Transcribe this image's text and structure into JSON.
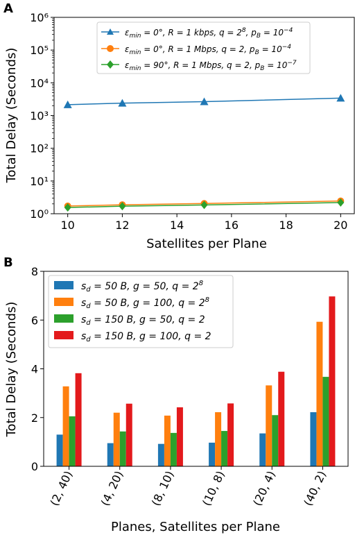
{
  "chart_data": [
    {
      "panel": "A",
      "type": "line",
      "xlabel": "Satellites per Plane",
      "ylabel": "Total Delay (Seconds)",
      "yscale": "log",
      "xlim": [
        9.5,
        20.5
      ],
      "ylim": [
        1,
        1000000
      ],
      "xticks": [
        "10",
        "12",
        "14",
        "16",
        "18",
        "20"
      ],
      "yticks": [
        "10⁰",
        "10¹",
        "10²",
        "10³",
        "10⁴",
        "10⁵",
        "10⁶"
      ],
      "x": [
        10,
        12,
        15,
        20
      ],
      "legend_position": "upper center",
      "series": [
        {
          "name": "εmin = 0°, R = 1 kbps, q = 2⁸, pB = 10⁻⁴",
          "color": "#1f77b4",
          "marker": "triangle",
          "values": [
            2150,
            2400,
            2650,
            3400
          ]
        },
        {
          "name": "εmin = 0°, R = 1 Mbps, q = 2, pB = 10⁻⁴",
          "color": "#ff7f0e",
          "marker": "circle",
          "values": [
            1.72,
            1.88,
            2.05,
            2.45
          ]
        },
        {
          "name": "εmin = 90°, R = 1 Mbps, q = 2, pB = 10⁻⁷",
          "color": "#2ca02c",
          "marker": "diamond",
          "values": [
            1.55,
            1.7,
            1.85,
            2.2
          ]
        }
      ]
    },
    {
      "panel": "B",
      "type": "bar",
      "xlabel": "Planes, Satellites per Plane",
      "ylabel": "Total Delay (Seconds)",
      "ylim": [
        0,
        8
      ],
      "yticks": [
        "0",
        "2",
        "4",
        "6",
        "8"
      ],
      "categories": [
        "(2, 40)",
        "(4, 20)",
        "(8, 10)",
        "(10, 8)",
        "(20, 4)",
        "(40, 2)"
      ],
      "legend_position": "upper left",
      "series": [
        {
          "name": "sd = 50 B, g = 50, q = 2⁸",
          "color": "#1f77b4",
          "values": [
            1.3,
            0.95,
            0.92,
            0.97,
            1.35,
            2.22
          ]
        },
        {
          "name": "sd = 50 B, g = 100, q = 2⁸",
          "color": "#ff7f0e",
          "values": [
            3.28,
            2.2,
            2.08,
            2.22,
            3.32,
            5.93
          ]
        },
        {
          "name": "sd = 150 B, g = 50, q = 2",
          "color": "#2ca02c",
          "values": [
            2.05,
            1.43,
            1.37,
            1.45,
            2.1,
            3.67
          ]
        },
        {
          "name": "sd = 150 B, g = 100, q = 2",
          "color": "#e31a1c",
          "values": [
            3.82,
            2.57,
            2.42,
            2.58,
            3.88,
            6.97
          ]
        }
      ]
    }
  ]
}
